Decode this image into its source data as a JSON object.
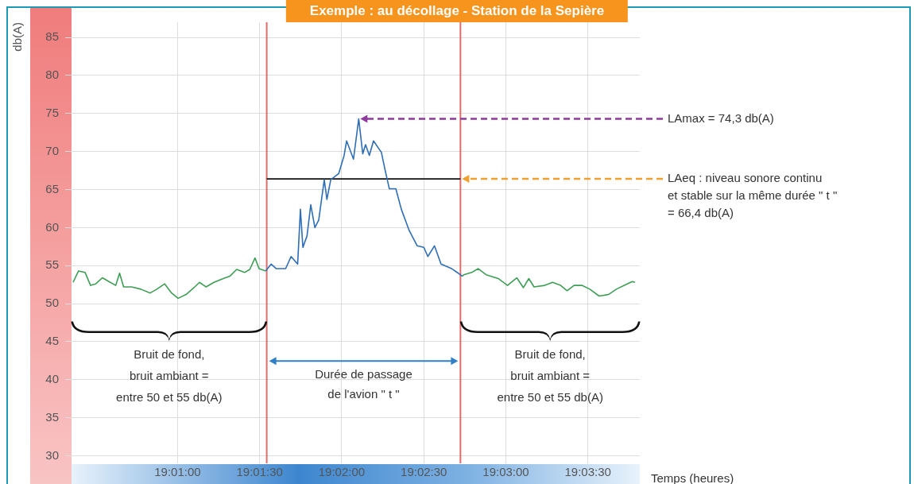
{
  "chart_data": {
    "type": "line",
    "title": "Exemple : au décollage - Station de la Sepière",
    "xlabel": "Temps (heures)",
    "ylabel": "db(A)",
    "xlim": [
      19.0059,
      19.0636
    ],
    "ylim": [
      29,
      87
    ],
    "xticks": [
      {
        "value": 19.01667,
        "label": "19:01:00"
      },
      {
        "value": 19.025,
        "label": "19:01:30"
      },
      {
        "value": 19.03333,
        "label": "19:02:00"
      },
      {
        "value": 19.04167,
        "label": "19:02:30"
      },
      {
        "value": 19.05,
        "label": "19:03:00"
      },
      {
        "value": 19.05833,
        "label": "19:03:30"
      }
    ],
    "yticks": [
      30,
      35,
      40,
      45,
      50,
      55,
      60,
      65,
      70,
      75,
      80,
      85
    ],
    "grid": true,
    "legend": false,
    "marker": "none",
    "series": [
      {
        "color": "#3f9e55",
        "x": [
          19.00606,
          19.00661,
          19.00728,
          19.00783,
          19.00836,
          19.00903,
          19.00969,
          19.01039,
          19.01078,
          19.01119,
          19.012,
          19.01294,
          19.01389,
          19.01456,
          19.01536,
          19.01606,
          19.01672,
          19.01753,
          19.01833,
          19.01889,
          19.01956,
          19.02036,
          19.02131,
          19.02197,
          19.02267,
          19.02347,
          19.024,
          19.02453,
          19.02494,
          19.02561
        ],
        "values": [
          52.8,
          54.3,
          54.1,
          52.4,
          52.6,
          53.4,
          52.9,
          52.4,
          54.0,
          52.2,
          52.2,
          51.9,
          51.4,
          51.9,
          52.6,
          51.4,
          50.7,
          51.2,
          52.1,
          52.8,
          52.2,
          52.8,
          53.3,
          53.6,
          54.5,
          54.1,
          54.5,
          56.0,
          54.6,
          54.3
        ]
      },
      {
        "color": "#2f6db5",
        "x": [
          19.02561,
          19.02617,
          19.02669,
          19.02764,
          19.02819,
          19.02886,
          19.02914,
          19.02939,
          19.02981,
          19.03019,
          19.03061,
          19.031,
          19.03156,
          19.03183,
          19.03222,
          19.03303,
          19.03358,
          19.03383,
          19.03453,
          19.03506,
          19.03547,
          19.03575,
          19.03614,
          19.03656,
          19.03736,
          19.03775,
          19.03817,
          19.03883,
          19.03939,
          19.04019,
          19.041,
          19.04167,
          19.04208,
          19.04275,
          19.04342,
          19.0445,
          19.04517,
          19.04558
        ],
        "values": [
          54.3,
          55.2,
          54.6,
          54.6,
          56.2,
          55.2,
          62.4,
          57.4,
          58.9,
          63.0,
          60.0,
          61.0,
          66.3,
          63.7,
          66.3,
          67.1,
          69.5,
          71.4,
          69.0,
          74.3,
          69.7,
          70.9,
          69.5,
          71.4,
          69.9,
          67.5,
          65.1,
          65.1,
          62.4,
          59.6,
          57.6,
          57.4,
          56.2,
          57.6,
          55.2,
          54.6,
          54.0,
          53.6
        ]
      },
      {
        "color": "#3f9e55",
        "x": [
          19.04558,
          19.04572,
          19.04653,
          19.04719,
          19.048,
          19.04922,
          19.05017,
          19.05111,
          19.05178,
          19.05233,
          19.05286,
          19.05394,
          19.05475,
          19.05556,
          19.05622,
          19.05692,
          19.05772,
          19.05853,
          19.05947,
          19.06042,
          19.06122,
          19.06203,
          19.06283,
          19.06311
        ],
        "values": [
          53.6,
          53.8,
          54.1,
          54.6,
          53.8,
          53.3,
          52.4,
          53.4,
          52.1,
          53.3,
          52.2,
          52.4,
          52.8,
          52.4,
          51.7,
          52.4,
          52.4,
          51.9,
          51.0,
          51.2,
          51.9,
          52.4,
          52.9,
          52.8
        ]
      },
      {
        "color": "#111111",
        "x": [
          19.02572,
          19.04539
        ],
        "values": [
          66.4,
          66.4
        ]
      }
    ],
    "ref_lines": [
      {
        "axis": "x",
        "value": 19.02572,
        "color": "#e36b6b"
      },
      {
        "axis": "x",
        "value": 19.04539,
        "color": "#e36b6b"
      }
    ],
    "annotations": [
      "LAmax = 74,3 db(A)",
      "LAeq : niveau sonore continu\net stable sur la même durée \" t \"\n= 66,4 db(A)",
      "Bruit de fond,\nbruit ambiant =\nentre 50 et 55 db(A)",
      "Durée de passage\nde l'avion \" t \"",
      "Bruit de fond,\nbruit ambiant =\nentre 50 et 55 db(A)"
    ]
  }
}
